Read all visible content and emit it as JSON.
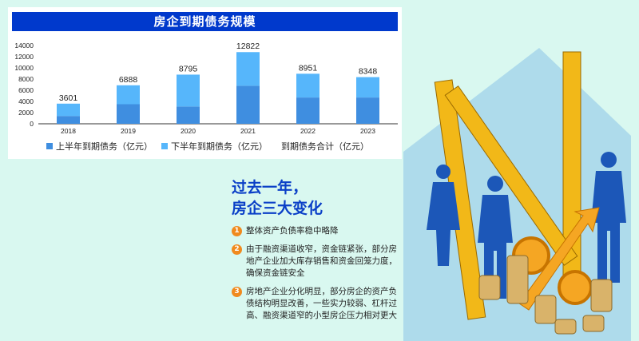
{
  "chart_data": {
    "type": "bar",
    "stacked": true,
    "title": "房企到期债务规模",
    "categories": [
      "2018",
      "2019",
      "2020",
      "2021",
      "2022",
      "2023"
    ],
    "series": [
      {
        "name": "上半年到期债务（亿元）",
        "values": [
          1400,
          3500,
          3100,
          6800,
          4700,
          4700
        ],
        "color": "#3f8ee0"
      },
      {
        "name": "下半年到期债务（亿元）",
        "values": [
          2201,
          3388,
          5695,
          6022,
          4251,
          3648
        ],
        "color": "#56b6fb"
      }
    ],
    "totals": {
      "name": "到期债务合计（亿元）",
      "values": [
        3601,
        6888,
        8795,
        12822,
        8951,
        8348
      ]
    },
    "ylim": [
      0,
      14000
    ],
    "yticks": [
      0,
      2000,
      4000,
      6000,
      8000,
      10000,
      12000,
      14000
    ],
    "legend": "bottom",
    "grid": false
  },
  "changes": {
    "headline_line1": "过去一年，",
    "headline_line2": "房企三大变化",
    "items": [
      {
        "num": "1",
        "text": "整体资产负债率稳中略降"
      },
      {
        "num": "2",
        "text": "由于融资渠道收窄，资金链紧张，部分房地产企业加大库存销售和资金回笼力度，确保资金链安全"
      },
      {
        "num": "3",
        "text": "房地产企业分化明显，部分房企的资产负债结构明显改善，一些实力较弱、杠杆过高、融资渠道窄的小型房企压力相对更大"
      }
    ]
  }
}
